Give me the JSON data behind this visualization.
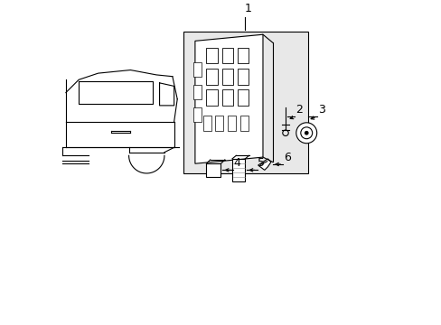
{
  "title": "",
  "bg_color": "#ffffff",
  "label_color": "#000000",
  "line_color": "#000000",
  "shaded_box_color": "#e8e8e8",
  "figsize": [
    4.89,
    3.6
  ],
  "dpi": 100
}
